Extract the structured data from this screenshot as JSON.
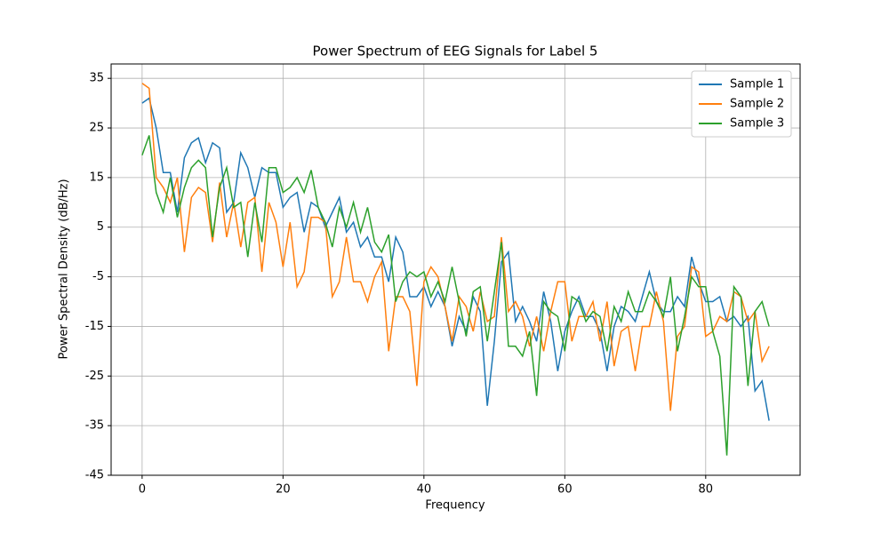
{
  "chart_data": {
    "type": "line",
    "title": "Power Spectrum of EEG Signals for Label 5",
    "x_label": "Frequency",
    "y_label": "Power Spectral Density (dB/Hz)",
    "x": [
      0,
      1,
      2,
      3,
      4,
      5,
      6,
      7,
      8,
      9,
      10,
      11,
      12,
      13,
      14,
      15,
      16,
      17,
      18,
      19,
      20,
      21,
      22,
      23,
      24,
      25,
      26,
      27,
      28,
      29,
      30,
      31,
      32,
      33,
      34,
      35,
      36,
      37,
      38,
      39,
      40,
      41,
      42,
      43,
      44,
      45,
      46,
      47,
      48,
      49,
      50,
      51,
      52,
      53,
      54,
      55,
      56,
      57,
      58,
      59,
      60,
      61,
      62,
      63,
      64,
      65,
      66,
      67,
      68,
      69,
      70,
      71,
      72,
      73,
      74,
      75,
      76,
      77,
      78,
      79,
      80,
      81,
      82,
      83,
      84,
      85,
      86,
      87,
      88,
      89
    ],
    "series": [
      {
        "name": "Sample 1",
        "color": "#1f77b4",
        "values": [
          30,
          31,
          25,
          16,
          16,
          8,
          19,
          22,
          23,
          18,
          22,
          21,
          8,
          10,
          20,
          17,
          11,
          17,
          16,
          16,
          9,
          11,
          12,
          4,
          10,
          9,
          5,
          8,
          11,
          4,
          6,
          1,
          3,
          -1,
          -1,
          -6,
          3,
          0,
          -9,
          -9,
          -7,
          -11,
          -8,
          -11,
          -19,
          -13,
          -16,
          -9,
          -12,
          -31,
          -18,
          -2,
          0,
          -14,
          -11,
          -14,
          -18,
          -8,
          -14,
          -24,
          -16,
          -12,
          -9,
          -13,
          -13,
          -16,
          -24,
          -15,
          -11,
          -12,
          -14,
          -9,
          -4,
          -10,
          -12,
          -12,
          -9,
          -11,
          -1,
          -6,
          -10,
          -10,
          -9,
          -14,
          -13,
          -15,
          -13,
          -28,
          -26,
          -34
        ]
      },
      {
        "name": "Sample 2",
        "color": "#ff7f0e",
        "values": [
          34,
          33,
          15,
          13,
          10,
          15,
          0,
          11,
          13,
          12,
          2,
          14,
          3,
          10,
          1,
          10,
          11,
          -4,
          10,
          6,
          -3,
          6,
          -7,
          -4,
          7,
          7,
          6,
          -9,
          -6,
          3,
          -6,
          -6,
          -10,
          -5,
          -2,
          -20,
          -9,
          -9,
          -12,
          -27,
          -6,
          -3,
          -5,
          -11,
          -18,
          -9,
          -11,
          -16,
          -8,
          -14,
          -13,
          3,
          -12,
          -10,
          -13,
          -19,
          -13,
          -20,
          -12,
          -6,
          -6,
          -18,
          -13,
          -13,
          -10,
          -18,
          -10,
          -23,
          -16,
          -15,
          -24,
          -15,
          -15,
          -8,
          -14,
          -32,
          -17,
          -15,
          -3,
          -4,
          -17,
          -16,
          -13,
          -14,
          -8,
          -9,
          -14,
          -12,
          -22,
          -19
        ]
      },
      {
        "name": "Sample 3",
        "color": "#2ca02c",
        "values": [
          19.5,
          23.5,
          12,
          8,
          15,
          7,
          13,
          17,
          18.5,
          17,
          3,
          13,
          17,
          9,
          10,
          -1,
          10,
          2,
          17,
          17,
          12,
          13,
          15,
          12,
          16.5,
          9,
          6,
          1,
          9,
          5,
          10,
          4,
          9,
          2,
          0,
          3.5,
          -10,
          -6,
          -4,
          -5,
          -4,
          -9,
          -6,
          -10,
          -3,
          -10,
          -17,
          -8,
          -7,
          -18,
          -8,
          2,
          -19,
          -19,
          -21,
          -16,
          -29,
          -10,
          -12,
          -13,
          -20,
          -9,
          -10,
          -14,
          -12,
          -13,
          -20,
          -11,
          -14,
          -8,
          -12,
          -12,
          -8,
          -10,
          -13,
          -5,
          -20,
          -13,
          -5,
          -7,
          -7,
          -16,
          -21,
          -41,
          -7,
          -9,
          -27,
          -12,
          -10,
          -15
        ]
      }
    ],
    "xlim": [
      -4.4,
      93.4
    ],
    "ylim": [
      -45,
      37.9
    ],
    "xticks": [
      0,
      20,
      40,
      60,
      80
    ],
    "yticks": [
      -45,
      -35,
      -25,
      -15,
      -5,
      5,
      15,
      25,
      35
    ],
    "grid": true,
    "legend": "upper right"
  }
}
